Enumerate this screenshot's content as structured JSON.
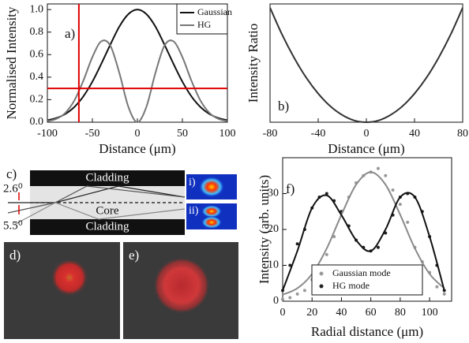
{
  "chart_data": [
    {
      "type": "line",
      "label": "a)",
      "xlabel": "Distance (μm)",
      "ylabel": "Normalised Intensity",
      "x": [
        -100,
        -90,
        -80,
        -70,
        -60,
        -50,
        -40,
        -30,
        -20,
        -10,
        0,
        10,
        20,
        30,
        40,
        50,
        60,
        70,
        80,
        90,
        100
      ],
      "series": [
        {
          "name": "Gaussian",
          "color": "#111111",
          "values": [
            0.017,
            0.037,
            0.073,
            0.135,
            0.23,
            0.36,
            0.52,
            0.69,
            0.85,
            0.96,
            1,
            0.96,
            0.85,
            0.69,
            0.52,
            0.36,
            0.23,
            0.135,
            0.073,
            0.037,
            0.017
          ]
        },
        {
          "name": "HG",
          "color": "#777777",
          "values": [
            0.009,
            0.03,
            0.083,
            0.193,
            0.369,
            0.578,
            0.719,
            0.679,
            0.436,
            0.136,
            0,
            0.136,
            0.436,
            0.679,
            0.719,
            0.578,
            0.369,
            0.193,
            0.083,
            0.03,
            0.009
          ]
        }
      ],
      "xlim": [
        -100,
        100
      ],
      "ylim": [
        0,
        1.05
      ],
      "xticks": [
        -100,
        -50,
        0,
        50,
        100
      ],
      "yticks": [
        {
          "value": 0,
          "label": "0.0"
        },
        0.2,
        0.4,
        0.6,
        0.8,
        {
          "value": 1,
          "label": "1.0"
        }
      ],
      "legend": "upper right",
      "reference_lines": {
        "x": -65,
        "y": 0.3,
        "color": "#e00000"
      }
    },
    {
      "type": "line",
      "label": "b)",
      "xlabel": "Distance (μm)",
      "ylabel": "Intensity Ratio",
      "x": [
        -80,
        -70,
        -60,
        -50,
        -40,
        -30,
        -20,
        -10,
        0,
        10,
        20,
        30,
        40,
        50,
        60,
        70,
        80
      ],
      "series": [
        {
          "color": "#333333",
          "values": [
            9.2,
            7.04,
            5.18,
            3.59,
            2.3,
            1.29,
            0.58,
            0.14,
            0,
            0.14,
            0.58,
            1.29,
            2.3,
            3.59,
            5.18,
            7.04,
            9.2
          ]
        }
      ],
      "xlim": [
        -80,
        80
      ],
      "ylim": [
        0,
        9.5
      ],
      "xticks": [
        -80,
        -40,
        0,
        40,
        80
      ]
    },
    {
      "type": "scatter",
      "label": "f)",
      "xlabel": "Radial distance (μm)",
      "ylabel": "Intensity (arb. units)",
      "x": [
        0,
        5,
        10,
        15,
        20,
        25,
        30,
        35,
        40,
        45,
        50,
        55,
        60,
        65,
        70,
        75,
        80,
        85,
        90,
        95,
        100,
        105,
        110
      ],
      "series": [
        {
          "name": "Gaussian mode",
          "color": "#999999",
          "values": [
            0.5,
            1,
            2,
            3,
            6,
            9,
            13,
            18,
            25,
            29,
            33,
            35,
            36,
            37,
            35,
            31,
            27,
            22,
            15,
            11,
            8,
            4,
            2
          ]
        },
        {
          "name": "HG mode",
          "color": "#222222",
          "values": [
            3,
            10,
            16,
            20,
            26,
            29,
            30,
            28,
            25,
            21,
            17,
            15,
            14,
            15,
            19,
            24,
            29,
            30,
            29,
            25,
            18,
            10,
            3
          ]
        }
      ],
      "fit_x": [
        0,
        10,
        20,
        30,
        40,
        50,
        60,
        70,
        80,
        90,
        100,
        110
      ],
      "fits": [
        {
          "color": "#8a8a8a",
          "values": [
            1.8,
            3.6,
            7.6,
            14.7,
            24.1,
            32.5,
            36,
            32.5,
            24.1,
            14.7,
            7.6,
            3.6
          ]
        },
        {
          "color": "#111111",
          "values": [
            3,
            14,
            26,
            29.5,
            24,
            17,
            14,
            20,
            29,
            29,
            18,
            3
          ]
        }
      ],
      "xlim": [
        0,
        115
      ],
      "ylim": [
        0,
        40
      ],
      "xticks": [
        0,
        20,
        40,
        60,
        80,
        100
      ],
      "yticks": [
        0,
        10,
        20,
        30
      ],
      "legend": "lower center"
    }
  ],
  "diagram": {
    "label": "c)",
    "cladding_top": "Cladding",
    "core": "Core",
    "cladding_bottom": "Cladding",
    "angle_1": "2.6⁰",
    "angle_2": "5.5⁰",
    "inset_1": "i)",
    "inset_2": "ii)"
  },
  "images": {
    "label_1": "d)",
    "label_2": "e)"
  }
}
